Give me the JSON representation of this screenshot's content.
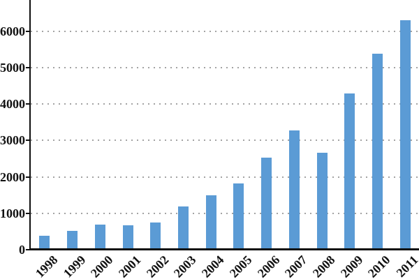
{
  "chart_data": {
    "type": "bar",
    "title": "",
    "xlabel": "",
    "ylabel": "",
    "categories": [
      "1998",
      "1999",
      "2000",
      "2001",
      "2002",
      "2003",
      "2004",
      "2005",
      "2006",
      "2007",
      "2008",
      "2009",
      "2010",
      "2011"
    ],
    "values": [
      390,
      520,
      690,
      665,
      745,
      1185,
      1500,
      1820,
      2520,
      3270,
      2660,
      4290,
      5380,
      6300
    ],
    "y_ticks": [
      0,
      1000,
      2000,
      3000,
      4000,
      5000,
      6000
    ],
    "y_tick_labels": [
      "0",
      "1000",
      "2000",
      "3000",
      "4000",
      "5000",
      "6000"
    ],
    "ylim": [
      0,
      6860
    ],
    "grid": "horizontal-dotted",
    "legend": "none",
    "bar_color": "#5B9BD5",
    "axis_color": "#0f0f0f",
    "gridline_color": "#a3a3a3",
    "label_color": "#111111",
    "background_color": "#ffffff"
  }
}
